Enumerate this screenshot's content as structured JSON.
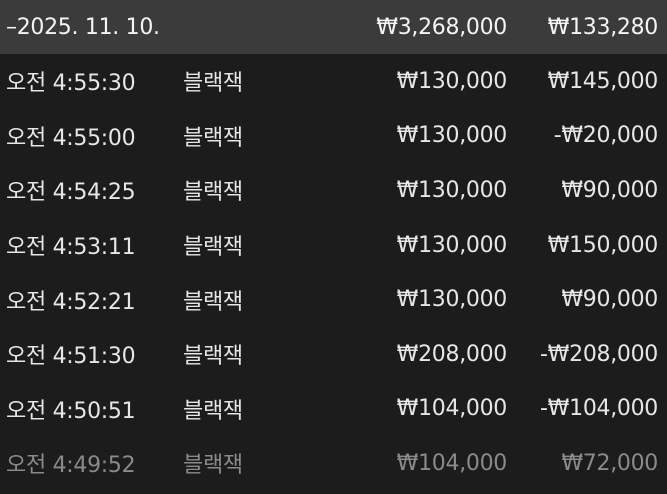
{
  "summary": {
    "date": "–2025. 11. 10.",
    "total_bet": "₩3,268,000",
    "total_profit": "₩133,280"
  },
  "rows": [
    {
      "time": "오전 4:55:30",
      "game": "블랙잭",
      "bet": "₩130,000",
      "profit": "₩145,000"
    },
    {
      "time": "오전 4:55:00",
      "game": "블랙잭",
      "bet": "₩130,000",
      "profit": "-₩20,000"
    },
    {
      "time": "오전 4:54:25",
      "game": "블랙잭",
      "bet": "₩130,000",
      "profit": "₩90,000"
    },
    {
      "time": "오전 4:53:11",
      "game": "블랙잭",
      "bet": "₩130,000",
      "profit": "₩150,000"
    },
    {
      "time": "오전 4:52:21",
      "game": "블랙잭",
      "bet": "₩130,000",
      "profit": "₩90,000"
    },
    {
      "time": "오전 4:51:30",
      "game": "블랙잭",
      "bet": "₩208,000",
      "profit": "-₩208,000"
    },
    {
      "time": "오전 4:50:51",
      "game": "블랙잭",
      "bet": "₩104,000",
      "profit": "-₩104,000"
    },
    {
      "time": "오전 4:49:52",
      "game": "블랙잭",
      "bet": "₩104,000",
      "profit": "₩72,000"
    }
  ]
}
